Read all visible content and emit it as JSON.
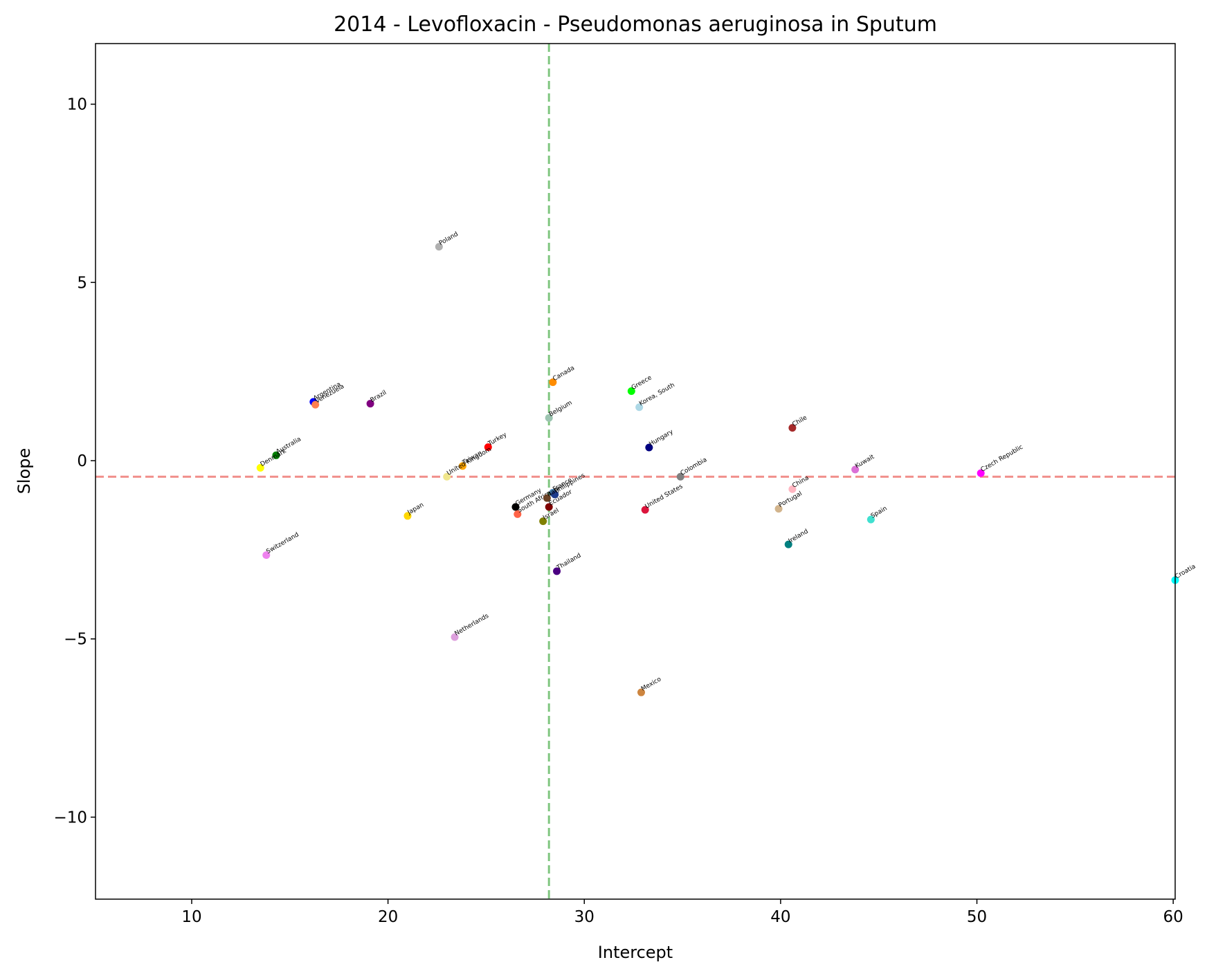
{
  "chart_data": {
    "type": "scatter",
    "title": "2014 - Levofloxacin - Pseudomonas aeruginosa in Sputum",
    "xlabel": "Intercept",
    "ylabel": "Slope",
    "xlim": [
      5.1,
      60.1
    ],
    "ylim": [
      -12.3,
      11.7
    ],
    "xticks": [
      10,
      20,
      30,
      40,
      50,
      60
    ],
    "yticks": [
      10,
      5,
      0,
      -5,
      -10
    ],
    "xtick_labels": [
      "10",
      "20",
      "30",
      "40",
      "50",
      "60"
    ],
    "ytick_labels": [
      "10",
      "5",
      "0",
      "−5",
      "−10"
    ],
    "grid": false,
    "reference_lines": [
      {
        "orientation": "vertical",
        "value": 28.2,
        "color": "#2ca02c"
      },
      {
        "orientation": "horizontal",
        "value": -0.45,
        "color": "#e8453c"
      }
    ],
    "points": [
      {
        "label": "Poland",
        "x": 22.6,
        "y": 6.0,
        "color": "#b0b0b0"
      },
      {
        "label": "Argentina",
        "x": 16.2,
        "y": 1.65,
        "color": "#0000ff"
      },
      {
        "label": "Venezuela",
        "x": 16.3,
        "y": 1.57,
        "color": "#ff7f50"
      },
      {
        "label": "Brazil",
        "x": 19.1,
        "y": 1.6,
        "color": "#800080"
      },
      {
        "label": "Canada",
        "x": 28.4,
        "y": 2.2,
        "color": "#ff8c00"
      },
      {
        "label": "Greece",
        "x": 32.4,
        "y": 1.95,
        "color": "#00ff00"
      },
      {
        "label": "Korea, South",
        "x": 32.8,
        "y": 1.5,
        "color": "#add8e6"
      },
      {
        "label": "Belgium",
        "x": 28.2,
        "y": 1.2,
        "color": "#9cc4b0"
      },
      {
        "label": "Chile",
        "x": 40.6,
        "y": 0.92,
        "color": "#a52a2a"
      },
      {
        "label": "Hungary",
        "x": 33.3,
        "y": 0.37,
        "color": "#000080"
      },
      {
        "label": "Australia",
        "x": 14.3,
        "y": 0.15,
        "color": "#008000"
      },
      {
        "label": "Denmark",
        "x": 13.5,
        "y": -0.2,
        "color": "#ffff00"
      },
      {
        "label": "Turkey",
        "x": 25.1,
        "y": 0.38,
        "color": "#ff0000"
      },
      {
        "label": "Taiwan",
        "x": 23.8,
        "y": -0.15,
        "color": "#ffa500"
      },
      {
        "label": "United Kingdom",
        "x": 23.0,
        "y": -0.45,
        "color": "#f0e68c"
      },
      {
        "label": "Kuwait",
        "x": 43.8,
        "y": -0.25,
        "color": "#da70d6"
      },
      {
        "label": "Czech Republic",
        "x": 50.2,
        "y": -0.35,
        "color": "#ff00ff"
      },
      {
        "label": "Colombia",
        "x": 34.9,
        "y": -0.45,
        "color": "#808080"
      },
      {
        "label": "China",
        "x": 40.6,
        "y": -0.8,
        "color": "#ffb6c1"
      },
      {
        "label": "France",
        "x": 28.4,
        "y": -0.9,
        "color": "#4682b4"
      },
      {
        "label": "Philippines",
        "x": 28.5,
        "y": -0.95,
        "color": "#1e3c8c"
      },
      {
        "label": "Germany",
        "x": 26.5,
        "y": -1.3,
        "color": "#000000"
      },
      {
        "label": "South Africa",
        "x": 26.6,
        "y": -1.5,
        "color": "#ff6347"
      },
      {
        "label": "Italy",
        "x": 28.1,
        "y": -1.05,
        "color": "#6b4226"
      },
      {
        "label": "Israel",
        "x": 27.9,
        "y": -1.7,
        "color": "#808000"
      },
      {
        "label": "Ecuador",
        "x": 28.2,
        "y": -1.3,
        "color": "#800000"
      },
      {
        "label": "Japan",
        "x": 21.0,
        "y": -1.55,
        "color": "#ffd700"
      },
      {
        "label": "United States",
        "x": 33.1,
        "y": -1.38,
        "color": "#dc143c"
      },
      {
        "label": "Portugal",
        "x": 39.9,
        "y": -1.35,
        "color": "#d2b48c"
      },
      {
        "label": "Spain",
        "x": 44.6,
        "y": -1.65,
        "color": "#40e0d0"
      },
      {
        "label": "Ireland",
        "x": 40.4,
        "y": -2.35,
        "color": "#008080"
      },
      {
        "label": "Switzerland",
        "x": 13.8,
        "y": -2.65,
        "color": "#ee82ee"
      },
      {
        "label": "Thailand",
        "x": 28.6,
        "y": -3.1,
        "color": "#4b0082"
      },
      {
        "label": "Croatia",
        "x": 60.1,
        "y": -3.35,
        "color": "#00ffff"
      },
      {
        "label": "Netherlands",
        "x": 23.4,
        "y": -4.95,
        "color": "#dda0dd"
      },
      {
        "label": "Mexico",
        "x": 32.9,
        "y": -6.5,
        "color": "#cd853f"
      }
    ]
  }
}
